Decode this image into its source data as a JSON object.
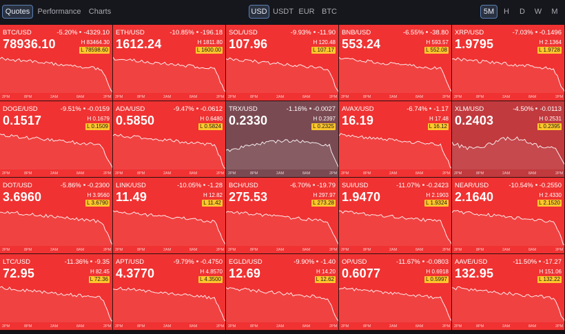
{
  "tabs": [
    {
      "label": "Quotes",
      "active": true
    },
    {
      "label": "Performance",
      "active": false
    },
    {
      "label": "Charts",
      "active": false
    }
  ],
  "currencies": [
    {
      "label": "USD",
      "active": true
    },
    {
      "label": "USDT",
      "active": false
    },
    {
      "label": "EUR",
      "active": false
    },
    {
      "label": "BTC",
      "active": false
    }
  ],
  "timeframes": [
    {
      "label": "5M",
      "active": true
    },
    {
      "label": "H",
      "active": false
    },
    {
      "label": "D",
      "active": false
    },
    {
      "label": "W",
      "active": false
    },
    {
      "label": "M",
      "active": false
    }
  ],
  "axis_labels": [
    "2PM",
    "8PM",
    "2AM",
    "8AM",
    "2PM"
  ],
  "colors": {
    "down": "#f03232",
    "neutral": "#7a4a52",
    "low_badge": "#ffc72c",
    "active_border": "#5a7fb5"
  },
  "tiles": [
    {
      "symbol": "BTC/USD",
      "pct": "-5.20%",
      "abs": "-4329.10",
      "price": "78936.10",
      "high": "H 83464.30",
      "low": "78598.60",
      "trend": "down"
    },
    {
      "symbol": "ETH/USD",
      "pct": "-10.85%",
      "abs": "-196.18",
      "price": "1612.24",
      "high": "H 1811.80",
      "low": "1600.00",
      "trend": "down"
    },
    {
      "symbol": "SOL/USD",
      "pct": "-9.93%",
      "abs": "-11.90",
      "price": "107.96",
      "high": "H 120.48",
      "low": "107.17",
      "trend": "down"
    },
    {
      "symbol": "BNB/USD",
      "pct": "-6.55%",
      "abs": "-38.80",
      "price": "553.24",
      "high": "H 593.57",
      "low": "552.08",
      "trend": "down"
    },
    {
      "symbol": "XRP/USD",
      "pct": "-7.03%",
      "abs": "-0.1496",
      "price": "1.9795",
      "high": "H 2.1364",
      "low": "1.9728",
      "trend": "down"
    },
    {
      "symbol": "DOGE/USD",
      "pct": "-9.51%",
      "abs": "-0.0159",
      "price": "0.1517",
      "high": "H 0.1679",
      "low": "0.1509",
      "trend": "down"
    },
    {
      "symbol": "ADA/USD",
      "pct": "-9.47%",
      "abs": "-0.0612",
      "price": "0.5850",
      "high": "H 0.6480",
      "low": "0.5824",
      "trend": "down"
    },
    {
      "symbol": "TRX/USD",
      "pct": "-1.16%",
      "abs": "-0.0027",
      "price": "0.2330",
      "high": "H 0.2397",
      "low": "0.2325",
      "trend": "neutral"
    },
    {
      "symbol": "AVAX/USD",
      "pct": "-6.74%",
      "abs": "-1.17",
      "price": "16.19",
      "high": "H 17.48",
      "low": "16.12",
      "trend": "down"
    },
    {
      "symbol": "XLM/USD",
      "pct": "-4.50%",
      "abs": "-0.0113",
      "price": "0.2403",
      "high": "H 0.2531",
      "low": "0.2395",
      "trend": "mixed"
    },
    {
      "symbol": "DOT/USD",
      "pct": "-5.86%",
      "abs": "-0.2300",
      "price": "3.6960",
      "high": "H 3.9560",
      "low": "3.6790",
      "trend": "down"
    },
    {
      "symbol": "LINK/USD",
      "pct": "-10.05%",
      "abs": "-1.28",
      "price": "11.49",
      "high": "H 12.82",
      "low": "11.42",
      "trend": "down"
    },
    {
      "symbol": "BCH/USD",
      "pct": "-6.70%",
      "abs": "-19.79",
      "price": "275.53",
      "high": "H 297.97",
      "low": "273.28",
      "trend": "down"
    },
    {
      "symbol": "SUI/USD",
      "pct": "-11.07%",
      "abs": "-0.2423",
      "price": "1.9470",
      "high": "H 2.1903",
      "low": "1.9324",
      "trend": "down"
    },
    {
      "symbol": "NEAR/USD",
      "pct": "-10.54%",
      "abs": "-0.2550",
      "price": "2.1640",
      "high": "H 2.4330",
      "low": "2.1520",
      "trend": "down"
    },
    {
      "symbol": "LTC/USD",
      "pct": "-11.36%",
      "abs": "-9.35",
      "price": "72.95",
      "high": "H 82.45",
      "low": "72.36",
      "trend": "down"
    },
    {
      "symbol": "APT/USD",
      "pct": "-9.79%",
      "abs": "-0.4750",
      "price": "4.3770",
      "high": "H 4.8570",
      "low": "4.3500",
      "trend": "down"
    },
    {
      "symbol": "EGLD/USD",
      "pct": "-9.90%",
      "abs": "-1.40",
      "price": "12.69",
      "high": "H 14.20",
      "low": "12.62",
      "trend": "down"
    },
    {
      "symbol": "OP/USD",
      "pct": "-11.67%",
      "abs": "-0.0803",
      "price": "0.6077",
      "high": "H 0.6918",
      "low": "0.5997",
      "trend": "down"
    },
    {
      "symbol": "AAVE/USD",
      "pct": "-11.50%",
      "abs": "-17.27",
      "price": "132.95",
      "high": "H 151.06",
      "low": "132.22",
      "trend": "down"
    }
  ]
}
